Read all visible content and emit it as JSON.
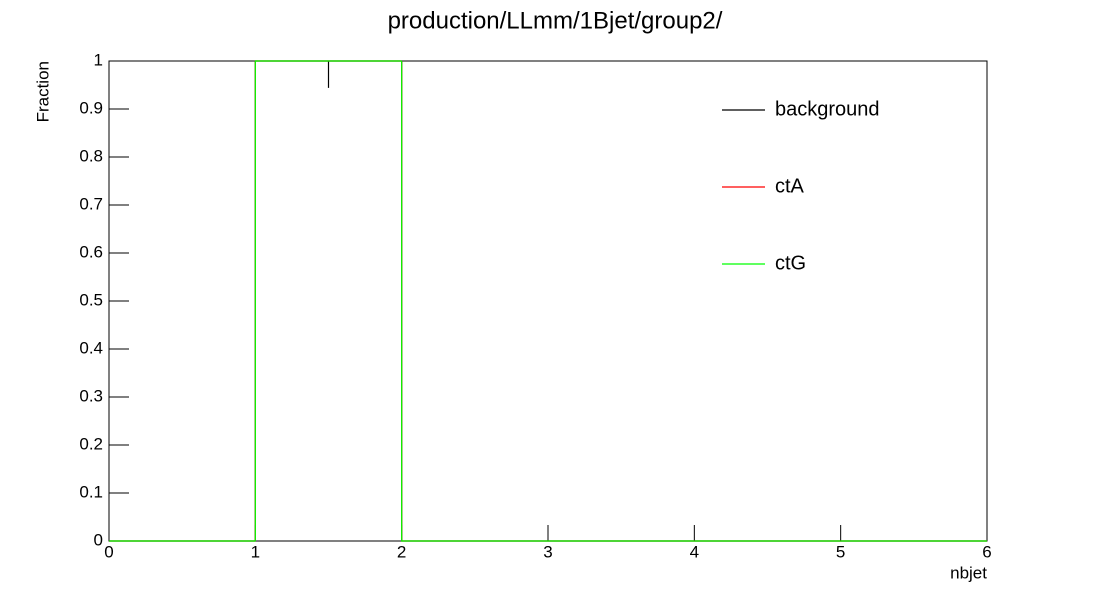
{
  "chart_data": {
    "type": "histogram",
    "title": "production/LLmm/1Bjet/group2/",
    "xlabel": "nbjet",
    "ylabel": "Fraction",
    "bins": [
      0,
      1,
      2,
      3,
      4,
      5,
      6
    ],
    "series": [
      {
        "name": "background",
        "color": "#000000",
        "values": [
          0,
          1,
          0,
          0,
          0,
          0
        ],
        "errors": [
          0,
          0.056,
          0,
          0,
          0,
          0
        ]
      },
      {
        "name": "ctA",
        "color": "#ff0000",
        "values": [
          0,
          1,
          0,
          0,
          0,
          0
        ]
      },
      {
        "name": "ctG",
        "color": "#00ff00",
        "values": [
          0,
          1,
          0,
          0,
          0,
          0
        ]
      }
    ],
    "xlim": [
      0,
      6
    ],
    "xticks": [
      0,
      1,
      2,
      3,
      4,
      5,
      6
    ],
    "ylim": [
      0,
      1
    ],
    "yticks": [
      0,
      0.1,
      0.2,
      0.3,
      0.4,
      0.5,
      0.6,
      0.7,
      0.8,
      0.9,
      1
    ],
    "legend": "top right"
  }
}
